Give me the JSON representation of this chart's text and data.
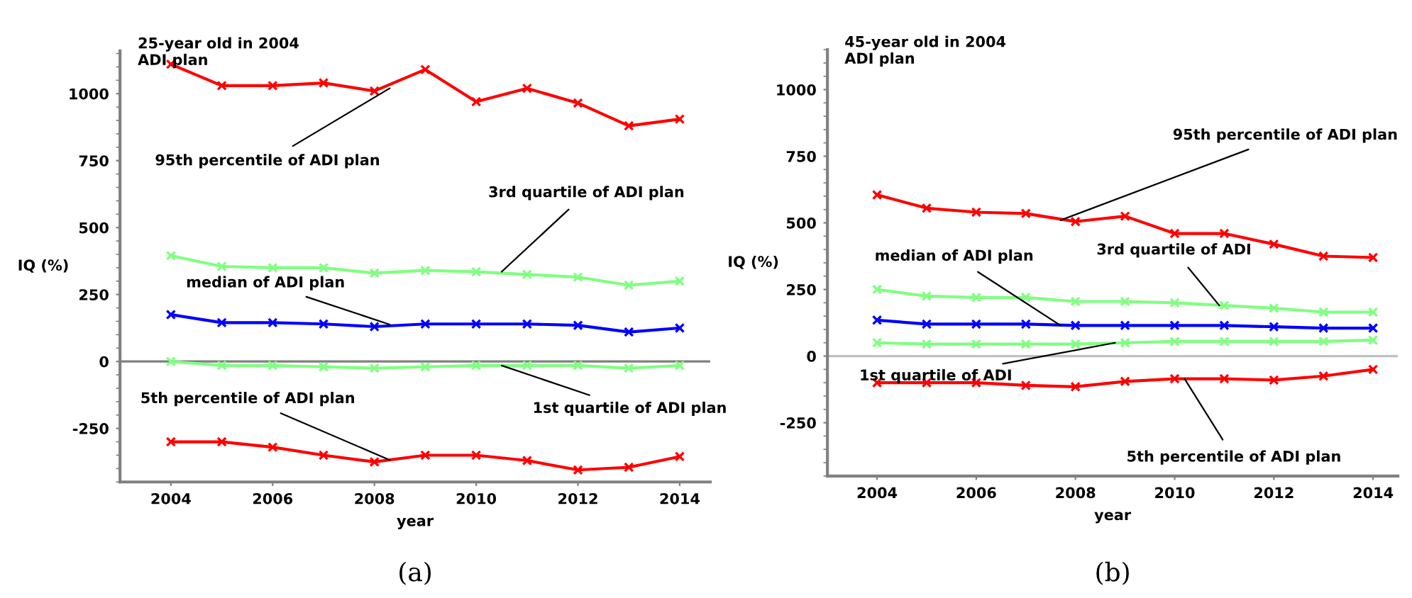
{
  "chart_data": [
    {
      "type": "line",
      "title": "25-year old in 2004\nADI plan",
      "xlabel": "year",
      "ylabel": "IQ (%)",
      "x": [
        2004,
        2005,
        2006,
        2007,
        2008,
        2009,
        2010,
        2011,
        2012,
        2013,
        2014
      ],
      "series": [
        {
          "color": "#ff0000",
          "values": [
            1110,
            1030,
            1030,
            1040,
            1010,
            1090,
            970,
            1020,
            965,
            880,
            905
          ]
        },
        {
          "color": "#80ff80",
          "values": [
            395,
            355,
            350,
            350,
            330,
            340,
            335,
            325,
            315,
            285,
            300
          ]
        },
        {
          "color": "#0000ff",
          "values": [
            175,
            145,
            145,
            140,
            130,
            140,
            140,
            140,
            135,
            110,
            125
          ]
        },
        {
          "color": "#80ff80",
          "values": [
            0,
            -15,
            -15,
            -20,
            -25,
            -20,
            -15,
            -15,
            -15,
            -25,
            -15
          ]
        },
        {
          "color": "#ff0000",
          "values": [
            -300,
            -300,
            -320,
            -350,
            -375,
            -350,
            -350,
            -370,
            -405,
            -395,
            -355
          ]
        }
      ],
      "xlim": [
        2003,
        2014.6
      ],
      "xticks": [
        2004,
        2006,
        2008,
        2010,
        2012,
        2014
      ],
      "ylim": [
        -450,
        1160
      ],
      "yticks": [
        -250,
        0,
        250,
        500,
        750,
        1000
      ],
      "ref_lines": [
        {
          "axis": "y",
          "value": 0,
          "color": "#808080"
        }
      ],
      "marker": "cross",
      "grid": false,
      "legend": false,
      "annotations": [
        {
          "text": "95th percentile of ADI plan",
          "x": 2008.3,
          "y": 1020
        },
        {
          "text": "3rd quartile of ADI plan",
          "x": 2010.5,
          "y": 335
        },
        {
          "text": "median of ADI plan",
          "x": 2008.3,
          "y": 138
        },
        {
          "text": "1st quartile of ADI plan",
          "x": 2010.5,
          "y": -15
        },
        {
          "text": "5th percentile of ADI plan",
          "x": 2008.3,
          "y": -368
        },
        "(a)"
      ]
    },
    {
      "type": "line",
      "title": "45-year old in 2004\nADI plan",
      "xlabel": "year",
      "ylabel": "IQ (%)",
      "x": [
        2004,
        2005,
        2006,
        2007,
        2008,
        2009,
        2010,
        2011,
        2012,
        2013,
        2014
      ],
      "series": [
        {
          "color": "#ff0000",
          "values": [
            605,
            555,
            540,
            535,
            505,
            525,
            460,
            460,
            420,
            375,
            370
          ]
        },
        {
          "color": "#80ff80",
          "values": [
            250,
            225,
            220,
            220,
            205,
            205,
            200,
            190,
            180,
            165,
            165
          ]
        },
        {
          "color": "#0000ff",
          "values": [
            135,
            120,
            120,
            120,
            115,
            115,
            115,
            115,
            110,
            105,
            105
          ]
        },
        {
          "color": "#80ff80",
          "values": [
            50,
            45,
            45,
            45,
            45,
            50,
            55,
            55,
            55,
            55,
            60
          ]
        },
        {
          "color": "#ff0000",
          "values": [
            -100,
            -100,
            -100,
            -110,
            -115,
            -95,
            -85,
            -85,
            -90,
            -75,
            -50
          ]
        }
      ],
      "xlim": [
        2003,
        2014.5
      ],
      "xticks": [
        2004,
        2006,
        2008,
        2010,
        2012,
        2014
      ],
      "ylim": [
        -450,
        1150
      ],
      "yticks": [
        -250,
        0,
        250,
        500,
        750,
        1000
      ],
      "ref_lines": [
        {
          "axis": "y",
          "value": 0,
          "color": "#c0c0c0"
        }
      ],
      "marker": "cross",
      "grid": false,
      "legend": false,
      "annotations": [
        {
          "text": "95th percentile of ADI plan",
          "x": 2007.7,
          "y": 510
        },
        {
          "text": "3rd quartile of ADI",
          "x": 2010.9,
          "y": 190
        },
        {
          "text": "median of ADI plan",
          "x": 2007.7,
          "y": 115
        },
        {
          "text": "1st quartile of ADI",
          "x": 2008.8,
          "y": 50
        },
        {
          "text": "5th percentile of ADI plan",
          "x": 2010.2,
          "y": -85
        },
        "(b)"
      ]
    }
  ]
}
